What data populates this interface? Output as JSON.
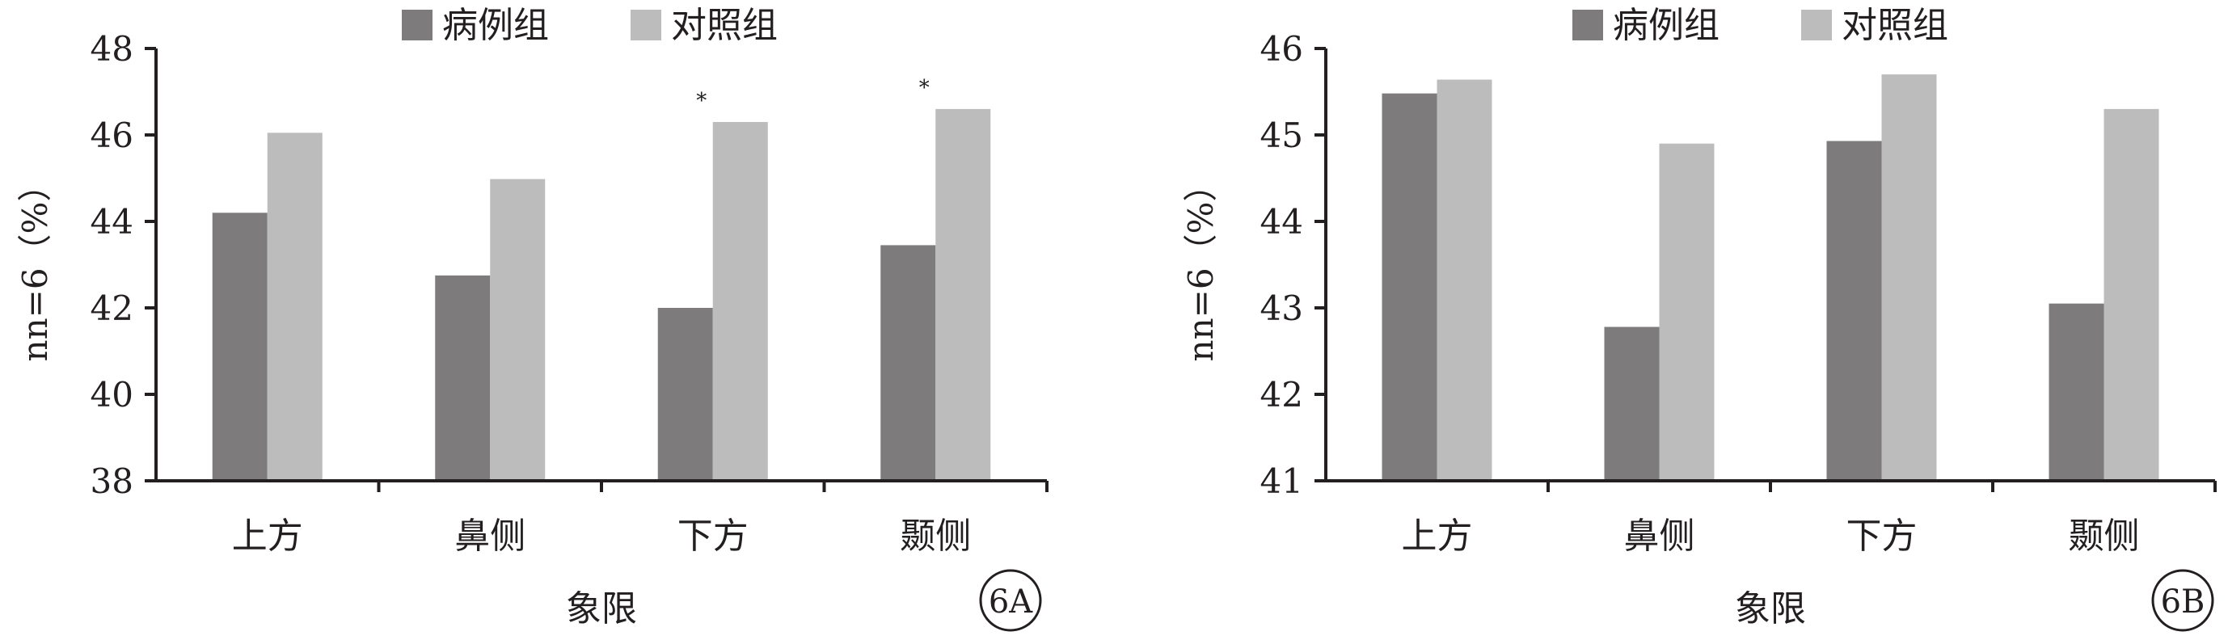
{
  "colors": {
    "case": "#7d7b7b",
    "control": "#bcbcbc",
    "axis": "#231f20"
  },
  "chart_data": [
    {
      "type": "bar",
      "panel_label": "6A",
      "categories": [
        "上方",
        "鼻侧",
        "下方",
        "颞侧"
      ],
      "series": [
        {
          "name": "病例组",
          "values": [
            44.2,
            42.75,
            42.0,
            43.45
          ]
        },
        {
          "name": "对照组",
          "values": [
            46.05,
            44.98,
            46.3,
            46.6
          ]
        }
      ],
      "annotations": [
        "",
        "",
        "*",
        "*"
      ],
      "xlabel": "象限",
      "ylabel": "nn=6（%）",
      "ylim": [
        38,
        48
      ],
      "yticks": [
        "38",
        "40",
        "42",
        "44",
        "46",
        "48"
      ],
      "legend": "top-center"
    },
    {
      "type": "bar",
      "panel_label": "6B",
      "categories": [
        "上方",
        "鼻侧",
        "下方",
        "颞侧"
      ],
      "series": [
        {
          "name": "病例组",
          "values": [
            45.48,
            42.78,
            44.93,
            43.05
          ]
        },
        {
          "name": "对照组",
          "values": [
            45.64,
            44.9,
            45.7,
            45.3
          ]
        }
      ],
      "annotations": [
        "",
        "",
        "",
        ""
      ],
      "xlabel": "象限",
      "ylabel": "nn=6（%）",
      "ylim": [
        41,
        46
      ],
      "yticks": [
        "41",
        "42",
        "43",
        "44",
        "45",
        "46"
      ],
      "legend": "top-center"
    }
  ]
}
